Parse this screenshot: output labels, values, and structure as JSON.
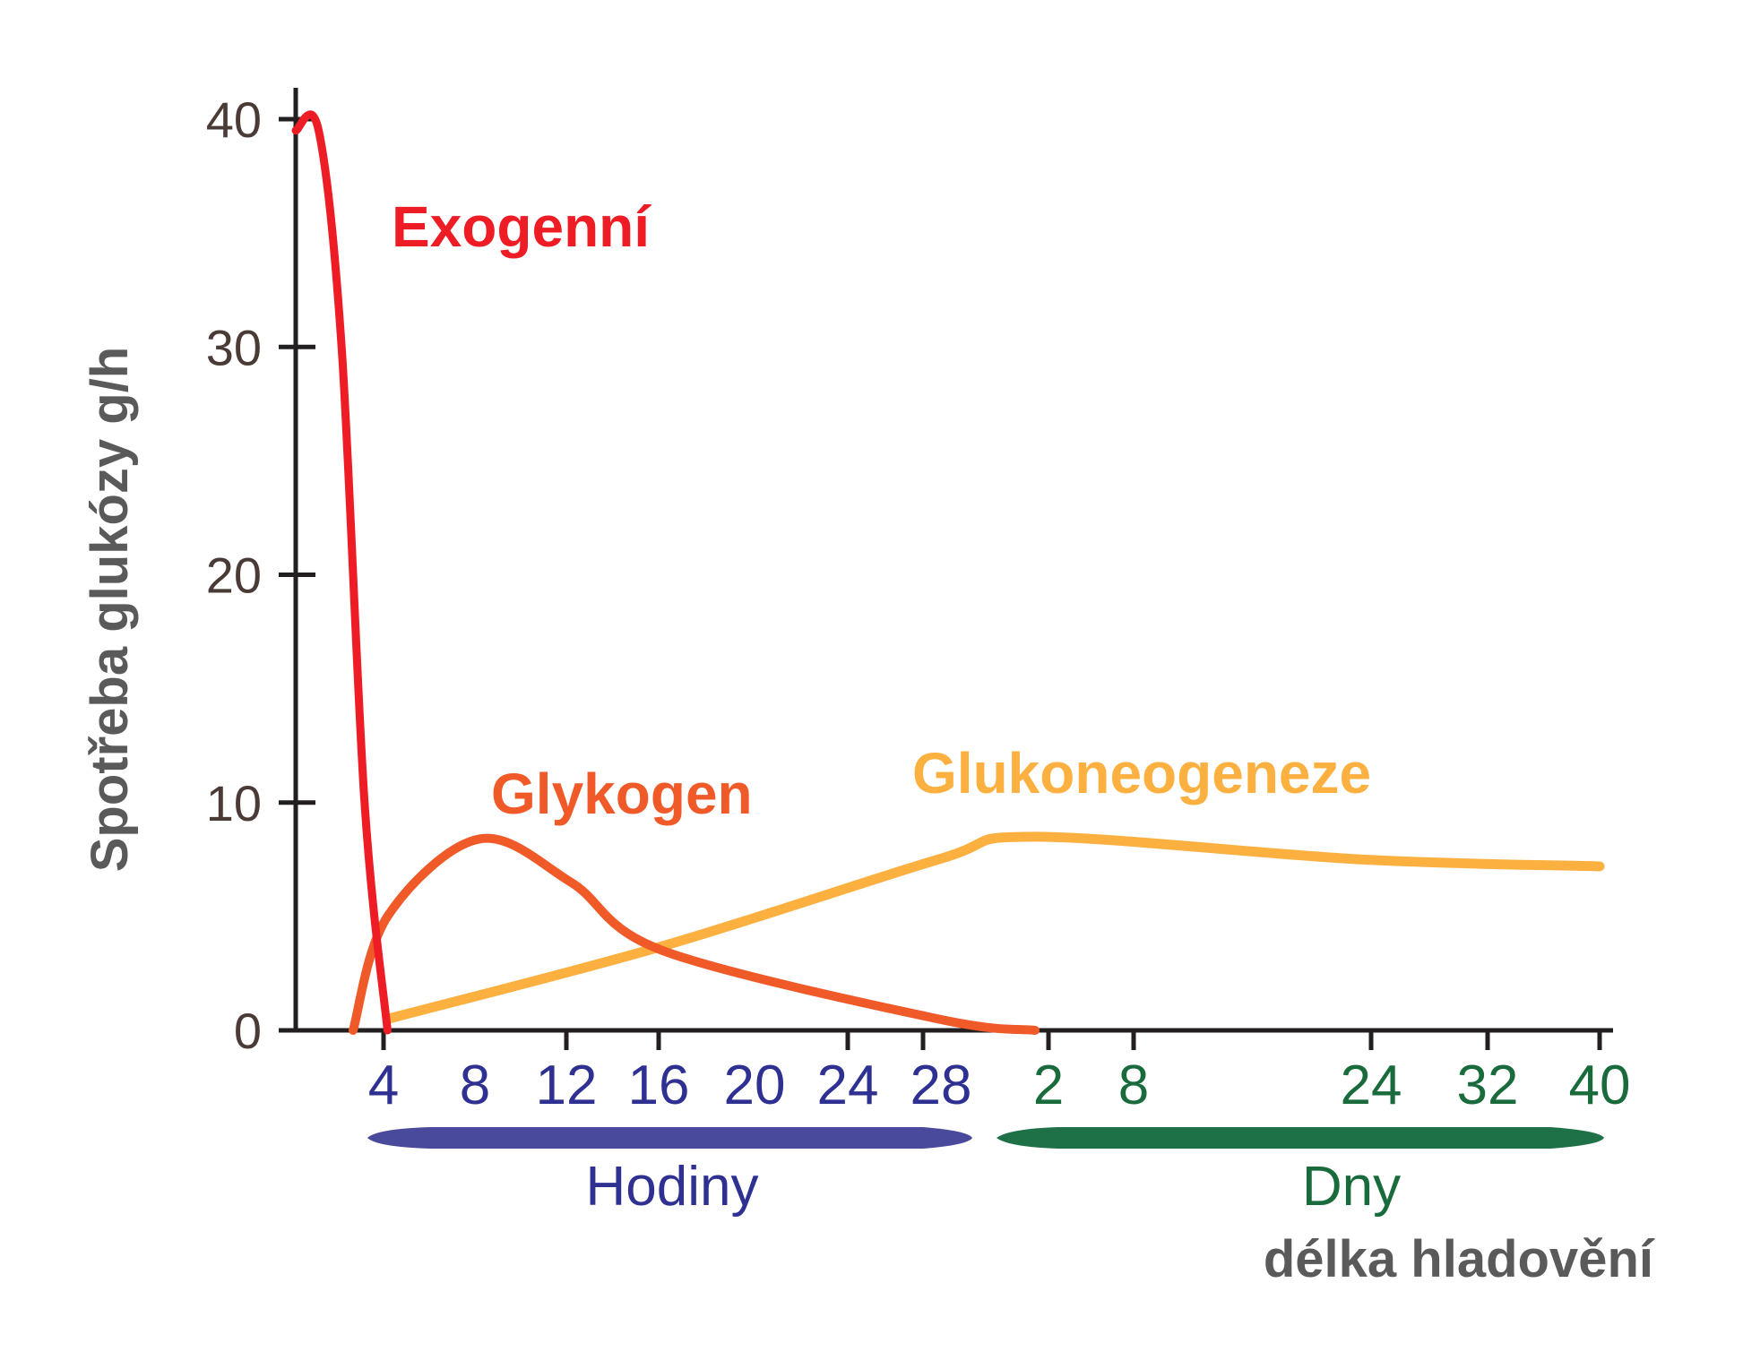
{
  "chart_data": {
    "type": "line",
    "title": "",
    "ylabel": "Spotřeba glukózy g/h",
    "xlabel": "délka hladovění",
    "ylim": [
      0,
      40
    ],
    "yticks": [
      "0",
      "10",
      "20",
      "30",
      "40"
    ],
    "x_groups": [
      {
        "label": "Hodiny",
        "color": "#2e3192",
        "bar_color": "#4a4a9c",
        "ticks": [
          "4",
          "8",
          "12",
          "16",
          "20",
          "24",
          "28"
        ]
      },
      {
        "label": "Dny",
        "color": "#1a6b3c",
        "bar_color": "#1e7046",
        "ticks": [
          "2",
          "8",
          "24",
          "32",
          "40"
        ]
      }
    ],
    "series": [
      {
        "name": "Exogenní",
        "color": "#ee1c25",
        "points": [
          [
            "0h",
            39.5
          ],
          [
            "1h",
            39.5
          ],
          [
            "2h",
            30
          ],
          [
            "3h",
            10
          ],
          [
            "4h",
            0
          ]
        ]
      },
      {
        "name": "Glykogen",
        "color": "#f05a28",
        "points": [
          [
            "2.5h",
            0
          ],
          [
            "4h",
            5
          ],
          [
            "8h",
            8.4
          ],
          [
            "12h",
            6.5
          ],
          [
            "16h",
            3.5
          ],
          [
            "28h",
            0.5
          ],
          [
            "2d",
            0
          ]
        ]
      },
      {
        "name": "Glukoneogeneze",
        "color": "#fbb040",
        "points": [
          [
            "4h",
            0.5
          ],
          [
            "16h",
            3.7
          ],
          [
            "28h",
            7.5
          ],
          [
            "2d",
            8.5
          ],
          [
            "24d",
            7.5
          ],
          [
            "40d",
            7.2
          ]
        ]
      }
    ]
  }
}
